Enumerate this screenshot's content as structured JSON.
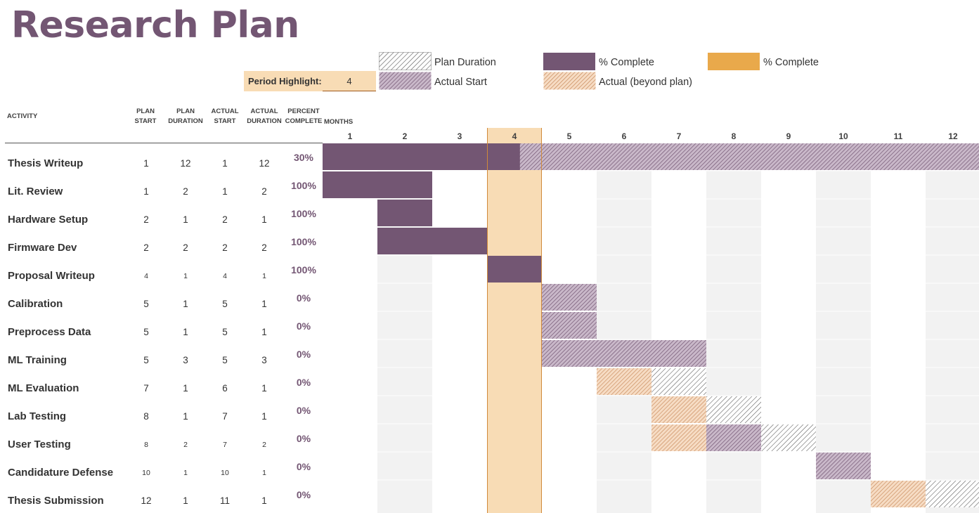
{
  "title": "Research Plan",
  "legend": {
    "plan_duration": "Plan Duration",
    "actual_start": "Actual Start",
    "pct_complete_purple": "% Complete",
    "actual_beyond_plan": "Actual (beyond plan)",
    "pct_complete_orange": "% Complete"
  },
  "period_highlight": {
    "label": "Period Highlight:",
    "value": "4"
  },
  "headers": {
    "activity": "ACTIVITY",
    "plan_start": [
      "PLAN",
      "START"
    ],
    "plan_duration": [
      "PLAN",
      "DURATION"
    ],
    "actual_start": [
      "ACTUAL",
      "START"
    ],
    "actual_duration": [
      "ACTUAL",
      "DURATION"
    ],
    "percent_complete": [
      "PERCENT",
      "COMPLETE"
    ],
    "months": "MONTHS"
  },
  "colors": {
    "purple": "#735673",
    "orange": "#e9a94b",
    "highlight": "#f8dcb5",
    "stripe_purple": "#8c6e8c",
    "stripe_orange": "#c8895a",
    "stripe_gray": "#555555",
    "band": "#f2f2f2"
  },
  "chart_data": {
    "type": "gantt",
    "months": [
      "1",
      "2",
      "3",
      "4",
      "5",
      "6",
      "7",
      "8",
      "9",
      "10",
      "11",
      "12"
    ],
    "highlight_period": 4,
    "rows": [
      {
        "activity": "Thesis Writeup",
        "plan_start": "1",
        "plan_duration": "12",
        "actual_start": "1",
        "actual_duration": "12",
        "percent": "30%",
        "pct_value": 30,
        "small": false
      },
      {
        "activity": "Lit. Review",
        "plan_start": "1",
        "plan_duration": "2",
        "actual_start": "1",
        "actual_duration": "2",
        "percent": "100%",
        "pct_value": 100,
        "small": false
      },
      {
        "activity": "Hardware Setup",
        "plan_start": "2",
        "plan_duration": "1",
        "actual_start": "2",
        "actual_duration": "1",
        "percent": "100%",
        "pct_value": 100,
        "small": false
      },
      {
        "activity": "Firmware Dev",
        "plan_start": "2",
        "plan_duration": "2",
        "actual_start": "2",
        "actual_duration": "2",
        "percent": "100%",
        "pct_value": 100,
        "small": false
      },
      {
        "activity": "Proposal Writeup",
        "plan_start": "4",
        "plan_duration": "1",
        "actual_start": "4",
        "actual_duration": "1",
        "percent": "100%",
        "pct_value": 100,
        "small": true
      },
      {
        "activity": "Calibration",
        "plan_start": "5",
        "plan_duration": "1",
        "actual_start": "5",
        "actual_duration": "1",
        "percent": "0%",
        "pct_value": 0,
        "small": false
      },
      {
        "activity": "Preprocess Data",
        "plan_start": "5",
        "plan_duration": "1",
        "actual_start": "5",
        "actual_duration": "1",
        "percent": "0%",
        "pct_value": 0,
        "small": false
      },
      {
        "activity": "ML Training",
        "plan_start": "5",
        "plan_duration": "3",
        "actual_start": "5",
        "actual_duration": "3",
        "percent": "0%",
        "pct_value": 0,
        "small": false
      },
      {
        "activity": "ML Evaluation",
        "plan_start": "7",
        "plan_duration": "1",
        "actual_start": "6",
        "actual_duration": "1",
        "percent": "0%",
        "pct_value": 0,
        "small": false
      },
      {
        "activity": "Lab Testing",
        "plan_start": "8",
        "plan_duration": "1",
        "actual_start": "7",
        "actual_duration": "1",
        "percent": "0%",
        "pct_value": 0,
        "small": false
      },
      {
        "activity": "User Testing",
        "plan_start": "8",
        "plan_duration": "2",
        "actual_start": "7",
        "actual_duration": "2",
        "percent": "0%",
        "pct_value": 0,
        "small": true
      },
      {
        "activity": "Candidature Defense",
        "plan_start": "10",
        "plan_duration": "1",
        "actual_start": "10",
        "actual_duration": "1",
        "percent": "0%",
        "pct_value": 0,
        "small": true
      },
      {
        "activity": "Thesis Submission",
        "plan_start": "12",
        "plan_duration": "1",
        "actual_start": "11",
        "actual_duration": "1",
        "percent": "0%",
        "pct_value": 0,
        "small": false
      }
    ]
  }
}
